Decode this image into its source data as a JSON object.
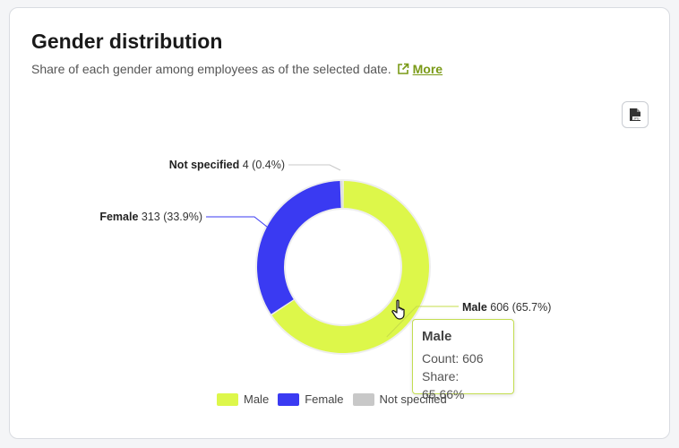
{
  "card": {
    "title": "Gender distribution",
    "subtitle": "Share of each gender among employees as of the selected date.",
    "more_label": "More"
  },
  "export_button": {
    "icon": "jpg-file-icon"
  },
  "chart_data": {
    "type": "pie",
    "donut": true,
    "categories": [
      "Male",
      "Female",
      "Not specified"
    ],
    "values": [
      606,
      313,
      4
    ],
    "shares_label": [
      "(65.7%)",
      "(33.9%)",
      "(0.4%)"
    ],
    "colors": [
      "#ddf74a",
      "#3a3af2",
      "#c8c8c8"
    ],
    "legend_position": "bottom"
  },
  "data_labels": [
    {
      "name": "Male",
      "value": "606",
      "share": "(65.7%)"
    },
    {
      "name": "Female",
      "value": "313",
      "share": "(33.9%)"
    },
    {
      "name": "Not specified",
      "value": "4",
      "share": "(0.4%)"
    }
  ],
  "tooltip": {
    "title": "Male",
    "count_line": "Count: 606",
    "share_line": "Share: 65.66%"
  },
  "legend": [
    {
      "label": "Male",
      "color": "#ddf74a"
    },
    {
      "label": "Female",
      "color": "#3a3af2"
    },
    {
      "label": "Not specified",
      "color": "#c8c8c8"
    }
  ]
}
